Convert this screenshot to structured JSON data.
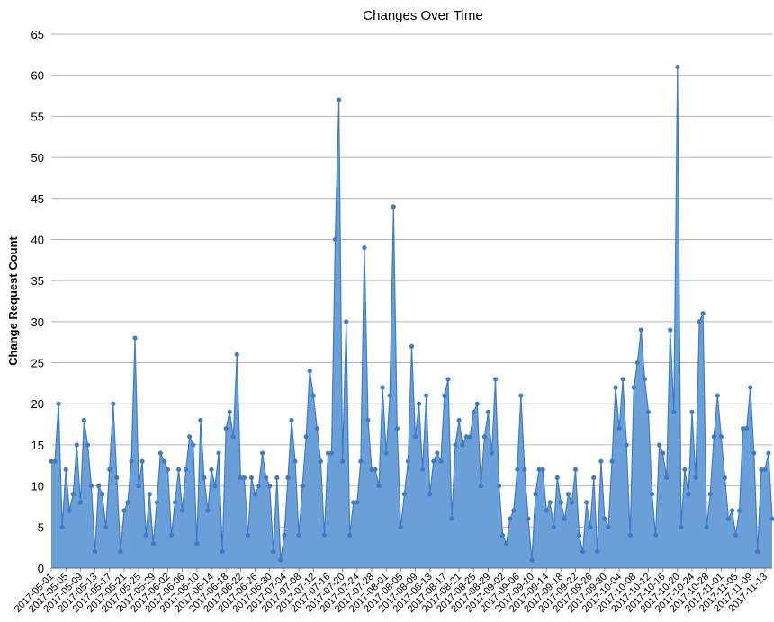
{
  "chart_data": {
    "type": "area",
    "title": "Changes Over Time",
    "y_label": "Change Request Count",
    "x": [
      "2017-05-01",
      "2017-05-02",
      "2017-05-03",
      "2017-05-04",
      "2017-05-05",
      "2017-05-06",
      "2017-05-07",
      "2017-05-08",
      "2017-05-09",
      "2017-05-10",
      "2017-05-11",
      "2017-05-12",
      "2017-05-13",
      "2017-05-14",
      "2017-05-15",
      "2017-05-16",
      "2017-05-17",
      "2017-05-18",
      "2017-05-19",
      "2017-05-20",
      "2017-05-21",
      "2017-05-22",
      "2017-05-23",
      "2017-05-24",
      "2017-05-25",
      "2017-05-26",
      "2017-05-27",
      "2017-05-28",
      "2017-05-29",
      "2017-05-30",
      "2017-05-31",
      "2017-06-01",
      "2017-06-02",
      "2017-06-03",
      "2017-06-04",
      "2017-06-05",
      "2017-06-06",
      "2017-06-07",
      "2017-06-08",
      "2017-06-09",
      "2017-06-10",
      "2017-06-11",
      "2017-06-12",
      "2017-06-13",
      "2017-06-14",
      "2017-06-15",
      "2017-06-16",
      "2017-06-17",
      "2017-06-18",
      "2017-06-19",
      "2017-06-20",
      "2017-06-21",
      "2017-06-22",
      "2017-06-23",
      "2017-06-24",
      "2017-06-25",
      "2017-06-26",
      "2017-06-27",
      "2017-06-28",
      "2017-06-29",
      "2017-06-30",
      "2017-07-01",
      "2017-07-02",
      "2017-07-03",
      "2017-07-04",
      "2017-07-05",
      "2017-07-06",
      "2017-07-07",
      "2017-07-08",
      "2017-07-09",
      "2017-07-10",
      "2017-07-11",
      "2017-07-12",
      "2017-07-13",
      "2017-07-14",
      "2017-07-15",
      "2017-07-16",
      "2017-07-17",
      "2017-07-18",
      "2017-07-19",
      "2017-07-20",
      "2017-07-21",
      "2017-07-22",
      "2017-07-23",
      "2017-07-24",
      "2017-07-25",
      "2017-07-26",
      "2017-07-27",
      "2017-07-28",
      "2017-07-29",
      "2017-07-30",
      "2017-07-31",
      "2017-08-01",
      "2017-08-02",
      "2017-08-03",
      "2017-08-04",
      "2017-08-05",
      "2017-08-06",
      "2017-08-07",
      "2017-08-08",
      "2017-08-09",
      "2017-08-10",
      "2017-08-11",
      "2017-08-12",
      "2017-08-13",
      "2017-08-14",
      "2017-08-15",
      "2017-08-16",
      "2017-08-17",
      "2017-08-18",
      "2017-08-19",
      "2017-08-20",
      "2017-08-21",
      "2017-08-22",
      "2017-08-23",
      "2017-08-24",
      "2017-08-25",
      "2017-08-26",
      "2017-08-27",
      "2017-08-28",
      "2017-08-29",
      "2017-08-30",
      "2017-08-31",
      "2017-09-01",
      "2017-09-02",
      "2017-09-03",
      "2017-09-04",
      "2017-09-05",
      "2017-09-06",
      "2017-09-07",
      "2017-09-08",
      "2017-09-09",
      "2017-09-10",
      "2017-09-11",
      "2017-09-12",
      "2017-09-13",
      "2017-09-14",
      "2017-09-15",
      "2017-09-16",
      "2017-09-17",
      "2017-09-18",
      "2017-09-19",
      "2017-09-20",
      "2017-09-21",
      "2017-09-22",
      "2017-09-23",
      "2017-09-24",
      "2017-09-25",
      "2017-09-26",
      "2017-09-27",
      "2017-09-28",
      "2017-09-29",
      "2017-09-30",
      "2017-10-01",
      "2017-10-02",
      "2017-10-03",
      "2017-10-04",
      "2017-10-05",
      "2017-10-06",
      "2017-10-07",
      "2017-10-08",
      "2017-10-09",
      "2017-10-10",
      "2017-10-11",
      "2017-10-12",
      "2017-10-13",
      "2017-10-14",
      "2017-10-15",
      "2017-10-16",
      "2017-10-17",
      "2017-10-18",
      "2017-10-19",
      "2017-10-20",
      "2017-10-21",
      "2017-10-22",
      "2017-10-23",
      "2017-10-24",
      "2017-10-25",
      "2017-10-26",
      "2017-10-27",
      "2017-10-28",
      "2017-10-29",
      "2017-10-30",
      "2017-10-31",
      "2017-11-01",
      "2017-11-02",
      "2017-11-03",
      "2017-11-04",
      "2017-11-05",
      "2017-11-06",
      "2017-11-07",
      "2017-11-08",
      "2017-11-09",
      "2017-11-10",
      "2017-11-11",
      "2017-11-12",
      "2017-11-13",
      "2017-11-14",
      "2017-11-15"
    ],
    "values": [
      13,
      13,
      20,
      5,
      12,
      7,
      9,
      15,
      8,
      18,
      15,
      10,
      2,
      10,
      9,
      5,
      12,
      20,
      11,
      2,
      7,
      8,
      13,
      28,
      10,
      13,
      4,
      9,
      3,
      8,
      14,
      13,
      12,
      4,
      8,
      12,
      7,
      12,
      16,
      15,
      3,
      18,
      11,
      7,
      12,
      10,
      14,
      2,
      17,
      19,
      16,
      26,
      11,
      11,
      4,
      11,
      9,
      10,
      14,
      11,
      10,
      2,
      11,
      1,
      4,
      11,
      18,
      13,
      4,
      10,
      16,
      24,
      21,
      17,
      13,
      4,
      14,
      14,
      40,
      57,
      13,
      30,
      4,
      8,
      8,
      13,
      39,
      18,
      12,
      12,
      10,
      22,
      14,
      21,
      44,
      17,
      5,
      9,
      13,
      27,
      16,
      20,
      12,
      21,
      9,
      13,
      14,
      13,
      21,
      23,
      6,
      15,
      18,
      15,
      16,
      16,
      19,
      20,
      10,
      16,
      19,
      14,
      23,
      10,
      4,
      3,
      6,
      7,
      12,
      21,
      12,
      6,
      1,
      9,
      12,
      12,
      7,
      8,
      5,
      11,
      8,
      6,
      9,
      8,
      12,
      4,
      2,
      8,
      5,
      11,
      2,
      13,
      6,
      5,
      13,
      22,
      17,
      23,
      15,
      4,
      22,
      25,
      29,
      23,
      19,
      9,
      4,
      15,
      14,
      11,
      29,
      19,
      61,
      5,
      12,
      9,
      19,
      11,
      30,
      31,
      5,
      9,
      16,
      21,
      16,
      11,
      6,
      7,
      4,
      7,
      17,
      17,
      22,
      14,
      2,
      12,
      12,
      14,
      6
    ],
    "color": "#6a9fd8",
    "line_color": "#3f7cc4",
    "xlim": [
      "2017-05-01",
      "2017-11-15"
    ],
    "xticks": [
      "2017-05-01",
      "2017-05-05",
      "2017-05-09",
      "2017-05-13",
      "2017-05-17",
      "2017-05-21",
      "2017-05-25",
      "2017-05-29",
      "2017-06-02",
      "2017-06-06",
      "2017-06-10",
      "2017-06-14",
      "2017-06-18",
      "2017-06-22",
      "2017-06-26",
      "2017-06-30",
      "2017-07-04",
      "2017-07-08",
      "2017-07-12",
      "2017-07-16",
      "2017-07-20",
      "2017-07-24",
      "2017-07-28",
      "2017-08-01",
      "2017-08-05",
      "2017-08-09",
      "2017-08-13",
      "2017-08-17",
      "2017-08-21",
      "2017-08-25",
      "2017-08-29",
      "2017-09-02",
      "2017-09-06",
      "2017-09-10",
      "2017-09-14",
      "2017-09-18",
      "2017-09-22",
      "2017-09-26",
      "2017-09-30",
      "2017-10-04",
      "2017-10-08",
      "2017-10-12",
      "2017-10-16",
      "2017-10-20",
      "2017-10-24",
      "2017-10-28",
      "2017-11-01",
      "2017-11-05",
      "2017-11-09",
      "2017-11-13"
    ],
    "ylim": [
      0,
      65
    ],
    "yticks": [
      0,
      5,
      10,
      15,
      20,
      25,
      30,
      35,
      40,
      45,
      50,
      55,
      60,
      65
    ],
    "grid": true
  }
}
